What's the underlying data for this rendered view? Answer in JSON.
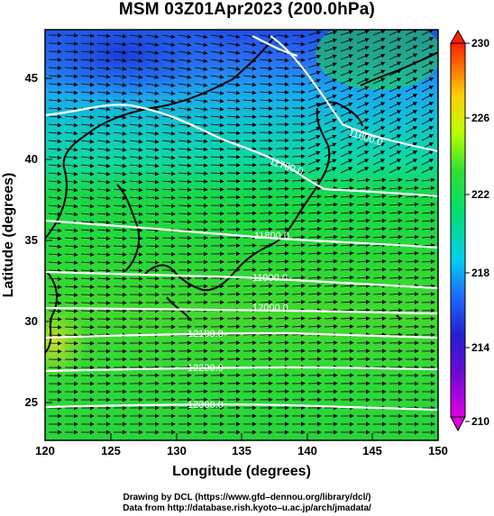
{
  "title": "MSM 03Z01Apr2023 (200.0hPa)",
  "x_axis": {
    "label": "Longitude (degrees)",
    "ticks": [
      "120",
      "125",
      "130",
      "135",
      "140",
      "145",
      "150"
    ],
    "range": [
      120,
      150
    ]
  },
  "y_axis": {
    "label": "Latitude  (degrees)",
    "ticks": [
      "25",
      "30",
      "35",
      "40",
      "45"
    ],
    "range": [
      22.4,
      47.6
    ]
  },
  "colorbar": {
    "ticks": [
      "210",
      "214",
      "218",
      "222",
      "226",
      "230"
    ],
    "range": [
      210,
      230
    ],
    "colors": [
      "#e000e0",
      "#3a0fd0",
      "#1e64ff",
      "#00e0f0",
      "#00e060",
      "#b0ff00",
      "#ffc800",
      "#ff1e00"
    ]
  },
  "contours": [
    {
      "label": "11600.0"
    },
    {
      "label": "11700.0"
    },
    {
      "label": "11800.0"
    },
    {
      "label": "11900.0"
    },
    {
      "label": "12000.0"
    },
    {
      "label": "12100.0"
    },
    {
      "label": "12200.0"
    },
    {
      "label": "12300.0"
    }
  ],
  "credits": {
    "line1": "Drawing by DCL (https://www.gfd–dennou.org/library/dcl/)",
    "line2": "Data from http://database.rish.kyoto–u.ac.jp/arch/jmadata/"
  }
}
